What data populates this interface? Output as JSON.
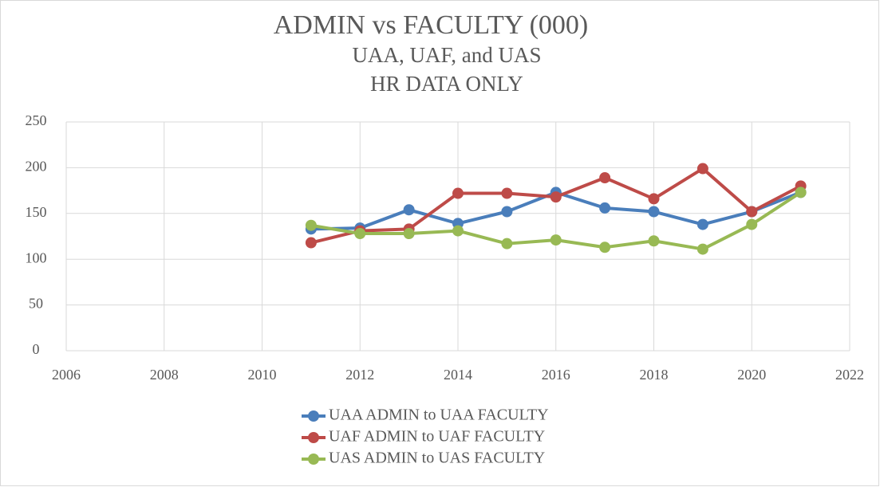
{
  "chart_data": {
    "type": "line",
    "title": "ADMIN vs FACULTY (000)",
    "subtitle": [
      "UAA, UAF, and UAS",
      "HR DATA ONLY"
    ],
    "x": [
      2011,
      2012,
      2013,
      2014,
      2015,
      2016,
      2017,
      2018,
      2019,
      2020,
      2021
    ],
    "series": [
      {
        "name": "UAA ADMIN to UAA FACULTY",
        "color": "#4a7ebb",
        "values": [
          133,
          134,
          154,
          139,
          152,
          173,
          156,
          152,
          138,
          152,
          173
        ]
      },
      {
        "name": "UAF ADMIN to UAF FACULTY",
        "color": "#be4b48",
        "values": [
          118,
          131,
          133,
          172,
          172,
          168,
          189,
          166,
          199,
          152,
          180
        ]
      },
      {
        "name": "UAS ADMIN to UAS FACULTY",
        "color": "#98b954",
        "values": [
          137,
          128,
          128,
          131,
          117,
          121,
          113,
          120,
          111,
          138,
          173
        ]
      }
    ],
    "xlim": [
      2006,
      2022
    ],
    "xticks": [
      2006,
      2008,
      2010,
      2012,
      2014,
      2016,
      2018,
      2020,
      2022
    ],
    "ylim": [
      0,
      250
    ],
    "yticks": [
      0,
      50,
      100,
      150,
      200,
      250
    ],
    "grid": true,
    "legend": "bottom"
  }
}
